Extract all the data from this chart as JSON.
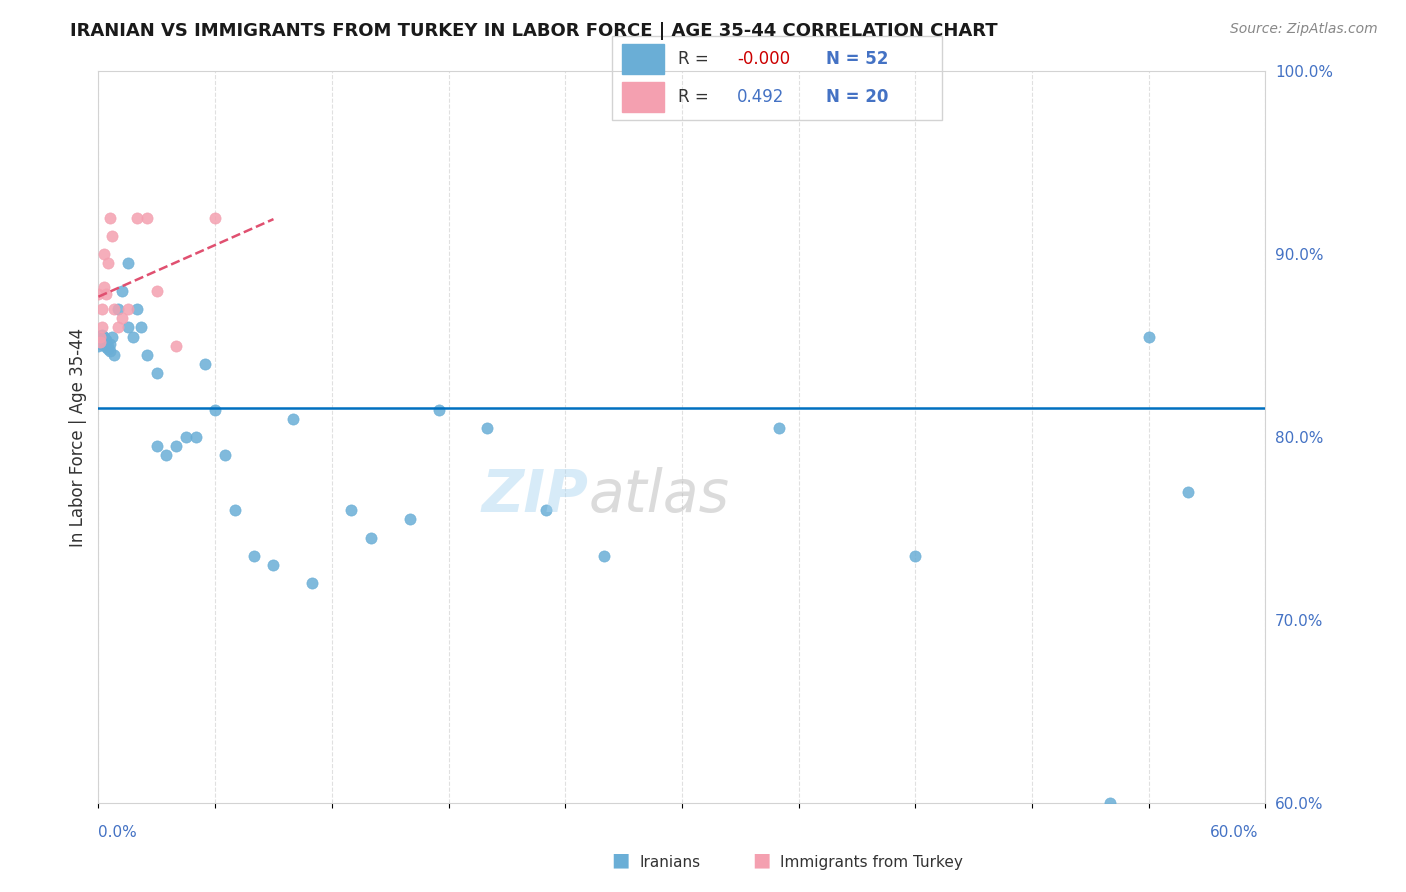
{
  "title": "IRANIAN VS IMMIGRANTS FROM TURKEY IN LABOR FORCE | AGE 35-44 CORRELATION CHART",
  "source": "Source: ZipAtlas.com",
  "ylabel": "In Labor Force | Age 35-44",
  "ylabel_right_ticks": [
    "60.0%",
    "70.0%",
    "80.0%",
    "90.0%",
    "100.0%"
  ],
  "ylabel_right_values": [
    0.6,
    0.7,
    0.8,
    0.9,
    1.0
  ],
  "legend_r1": "-0.000",
  "legend_n1": "52",
  "legend_r2": "0.492",
  "legend_n2": "20",
  "watermark_zip": "ZIP",
  "watermark_atlas": "atlas",
  "blue_color": "#6aaed6",
  "pink_color": "#f4a0b0",
  "trend_blue": "#0070c0",
  "trend_pink": "#e05070",
  "iranians_x": [
    0.0,
    0.001,
    0.001,
    0.001,
    0.002,
    0.002,
    0.002,
    0.003,
    0.003,
    0.003,
    0.004,
    0.004,
    0.005,
    0.005,
    0.006,
    0.006,
    0.007,
    0.008,
    0.01,
    0.012,
    0.015,
    0.015,
    0.018,
    0.02,
    0.022,
    0.025,
    0.03,
    0.03,
    0.035,
    0.04,
    0.045,
    0.05,
    0.055,
    0.06,
    0.065,
    0.07,
    0.08,
    0.09,
    0.1,
    0.11,
    0.13,
    0.14,
    0.16,
    0.175,
    0.2,
    0.23,
    0.26,
    0.35,
    0.42,
    0.52,
    0.54,
    0.56
  ],
  "iranians_y": [
    0.85,
    0.853,
    0.852,
    0.851,
    0.854,
    0.856,
    0.853,
    0.855,
    0.852,
    0.851,
    0.849,
    0.853,
    0.85,
    0.848,
    0.851,
    0.847,
    0.855,
    0.845,
    0.87,
    0.88,
    0.895,
    0.86,
    0.855,
    0.87,
    0.86,
    0.845,
    0.795,
    0.835,
    0.79,
    0.795,
    0.8,
    0.8,
    0.84,
    0.815,
    0.79,
    0.76,
    0.735,
    0.73,
    0.81,
    0.72,
    0.76,
    0.745,
    0.755,
    0.815,
    0.805,
    0.76,
    0.735,
    0.805,
    0.735,
    0.6,
    0.855,
    0.77
  ],
  "turkey_x": [
    0.0,
    0.001,
    0.001,
    0.002,
    0.002,
    0.003,
    0.003,
    0.004,
    0.005,
    0.006,
    0.007,
    0.008,
    0.01,
    0.012,
    0.015,
    0.02,
    0.025,
    0.03,
    0.04,
    0.06
  ],
  "turkey_y": [
    0.878,
    0.855,
    0.852,
    0.87,
    0.86,
    0.9,
    0.882,
    0.878,
    0.895,
    0.92,
    0.91,
    0.87,
    0.86,
    0.865,
    0.87,
    0.92,
    0.92,
    0.88,
    0.85,
    0.92
  ],
  "xmin": 0.0,
  "xmax": 0.6,
  "ymin": 0.6,
  "ymax": 1.0
}
